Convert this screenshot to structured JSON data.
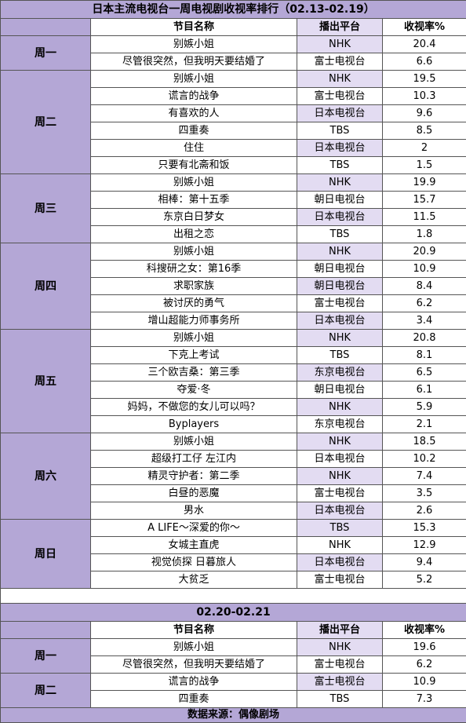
{
  "title": "日本主流电视台一周电视剧收视率排行（02.13-02.19）",
  "headers": {
    "name": "节目名称",
    "platform": "播出平台",
    "rating": "收视率%"
  },
  "days": [
    {
      "day": "周一",
      "rows": [
        {
          "name": "别嫉小姐",
          "platform": "NHK",
          "rating": "20.4"
        },
        {
          "name": "尽管很突然，但我明天要结婚了",
          "platform": "富士电视台",
          "rating": "6.6"
        }
      ]
    },
    {
      "day": "周二",
      "rows": [
        {
          "name": "别嫉小姐",
          "platform": "NHK",
          "rating": "19.5"
        },
        {
          "name": "谎言的战争",
          "platform": "富士电视台",
          "rating": "10.3"
        },
        {
          "name": "有喜欢的人",
          "platform": "日本电视台",
          "rating": "9.6"
        },
        {
          "name": "四重奏",
          "platform": "TBS",
          "rating": "8.5"
        },
        {
          "name": "住住",
          "platform": "日本电视台",
          "rating": "2"
        },
        {
          "name": "只要有北斋和饭",
          "platform": "TBS",
          "rating": "1.5"
        }
      ]
    },
    {
      "day": "周三",
      "rows": [
        {
          "name": "别嫉小姐",
          "platform": "NHK",
          "rating": "19.9"
        },
        {
          "name": "相棒：第十五季",
          "platform": "朝日电视台",
          "rating": "15.7"
        },
        {
          "name": "东京白日梦女",
          "platform": "日本电视台",
          "rating": "11.5"
        },
        {
          "name": "出租之恋",
          "platform": "TBS",
          "rating": "1.8"
        }
      ]
    },
    {
      "day": "周四",
      "rows": [
        {
          "name": "别嫉小姐",
          "platform": "NHK",
          "rating": "20.9"
        },
        {
          "name": "科搜研之女：第16季",
          "platform": "朝日电视台",
          "rating": "10.9"
        },
        {
          "name": "求职家族",
          "platform": "朝日电视台",
          "rating": "8.4"
        },
        {
          "name": "被讨厌的勇气",
          "platform": "富士电视台",
          "rating": "6.2"
        },
        {
          "name": "增山超能力师事务所",
          "platform": "日本电视台",
          "rating": "3.4"
        }
      ]
    },
    {
      "day": "周五",
      "rows": [
        {
          "name": "别嫉小姐",
          "platform": "NHK",
          "rating": "20.8"
        },
        {
          "name": "下克上考试",
          "platform": "TBS",
          "rating": "8.1"
        },
        {
          "name": "三个欧吉桑：第三季",
          "platform": "东京电视台",
          "rating": "6.5"
        },
        {
          "name": "夺爱·冬",
          "platform": "朝日电视台",
          "rating": "6.1"
        },
        {
          "name": "妈妈，不做您的女儿可以吗？",
          "platform": "NHK",
          "rating": "5.9"
        },
        {
          "name": "Byplayers",
          "platform": "东京电视台",
          "rating": "2.1"
        }
      ]
    },
    {
      "day": "周六",
      "rows": [
        {
          "name": "别嫉小姐",
          "platform": "NHK",
          "rating": "18.5"
        },
        {
          "name": "超级打工仔 左江内",
          "platform": "日本电视台",
          "rating": "10.2"
        },
        {
          "name": "精灵守护者：第二季",
          "platform": "NHK",
          "rating": "7.4"
        },
        {
          "name": "白昼的恶魔",
          "platform": "富士电视台",
          "rating": "3.5"
        },
        {
          "name": "男水",
          "platform": "日本电视台",
          "rating": "2.6"
        }
      ]
    },
    {
      "day": "周日",
      "rows": [
        {
          "name": "A LIFE～深爱的你～",
          "platform": "TBS",
          "rating": "15.3"
        },
        {
          "name": "女城主直虎",
          "platform": "NHK",
          "rating": "12.9"
        },
        {
          "name": "视觉侦探 日暮旅人",
          "platform": "日本电视台",
          "rating": "9.4"
        },
        {
          "name": "大贫乏",
          "platform": "富士电视台",
          "rating": "5.2"
        }
      ]
    }
  ],
  "second_title": "02.20-02.21",
  "days2": [
    {
      "day": "周一",
      "rows": [
        {
          "name": "别嫉小姐",
          "platform": "NHK",
          "rating": "19.6"
        },
        {
          "name": "尽管很突然，但我明天要结婚了",
          "platform": "富士电视台",
          "rating": "6.2"
        }
      ]
    },
    {
      "day": "周二",
      "rows": [
        {
          "name": "谎言的战争",
          "platform": "富士电视台",
          "rating": "10.9"
        },
        {
          "name": "四重奏",
          "platform": "TBS",
          "rating": "7.3"
        }
      ]
    }
  ],
  "footer": "数据来源：偶像剧场",
  "colors": {
    "day_bg": "#b4a7d6",
    "platform_bg": "#e3dcf2"
  }
}
